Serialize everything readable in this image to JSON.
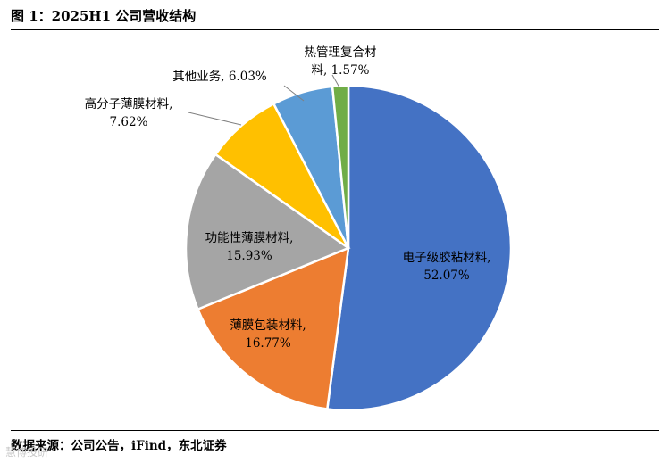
{
  "header": {
    "title": "图 1：2025H1 公司营收结构"
  },
  "chart_data": {
    "type": "pie",
    "title": "2025H1 公司营收结构",
    "slices": [
      {
        "label": "电子级胶粘材料",
        "value": 52.07,
        "value_text": "52.07%",
        "color": "#4472C4"
      },
      {
        "label": "薄膜包装材料",
        "value": 16.77,
        "value_text": "16.77%",
        "color": "#ED7D31"
      },
      {
        "label": "功能性薄膜材料",
        "value": 15.93,
        "value_text": "15.93%",
        "color": "#A5A5A5"
      },
      {
        "label": "高分子薄膜材料",
        "value": 7.62,
        "value_text": "7.62%",
        "color": "#FFC000"
      },
      {
        "label": "其他业务",
        "value": 6.03,
        "value_text": "6.03%",
        "color": "#5B9BD5"
      },
      {
        "label": "热管理复合材料",
        "value": 1.57,
        "value_text": "1.57%",
        "color": "#70AD47"
      }
    ]
  },
  "footer": {
    "source": "数据来源：公司公告，iFind，东北证券",
    "watermark": "慧博投研"
  }
}
